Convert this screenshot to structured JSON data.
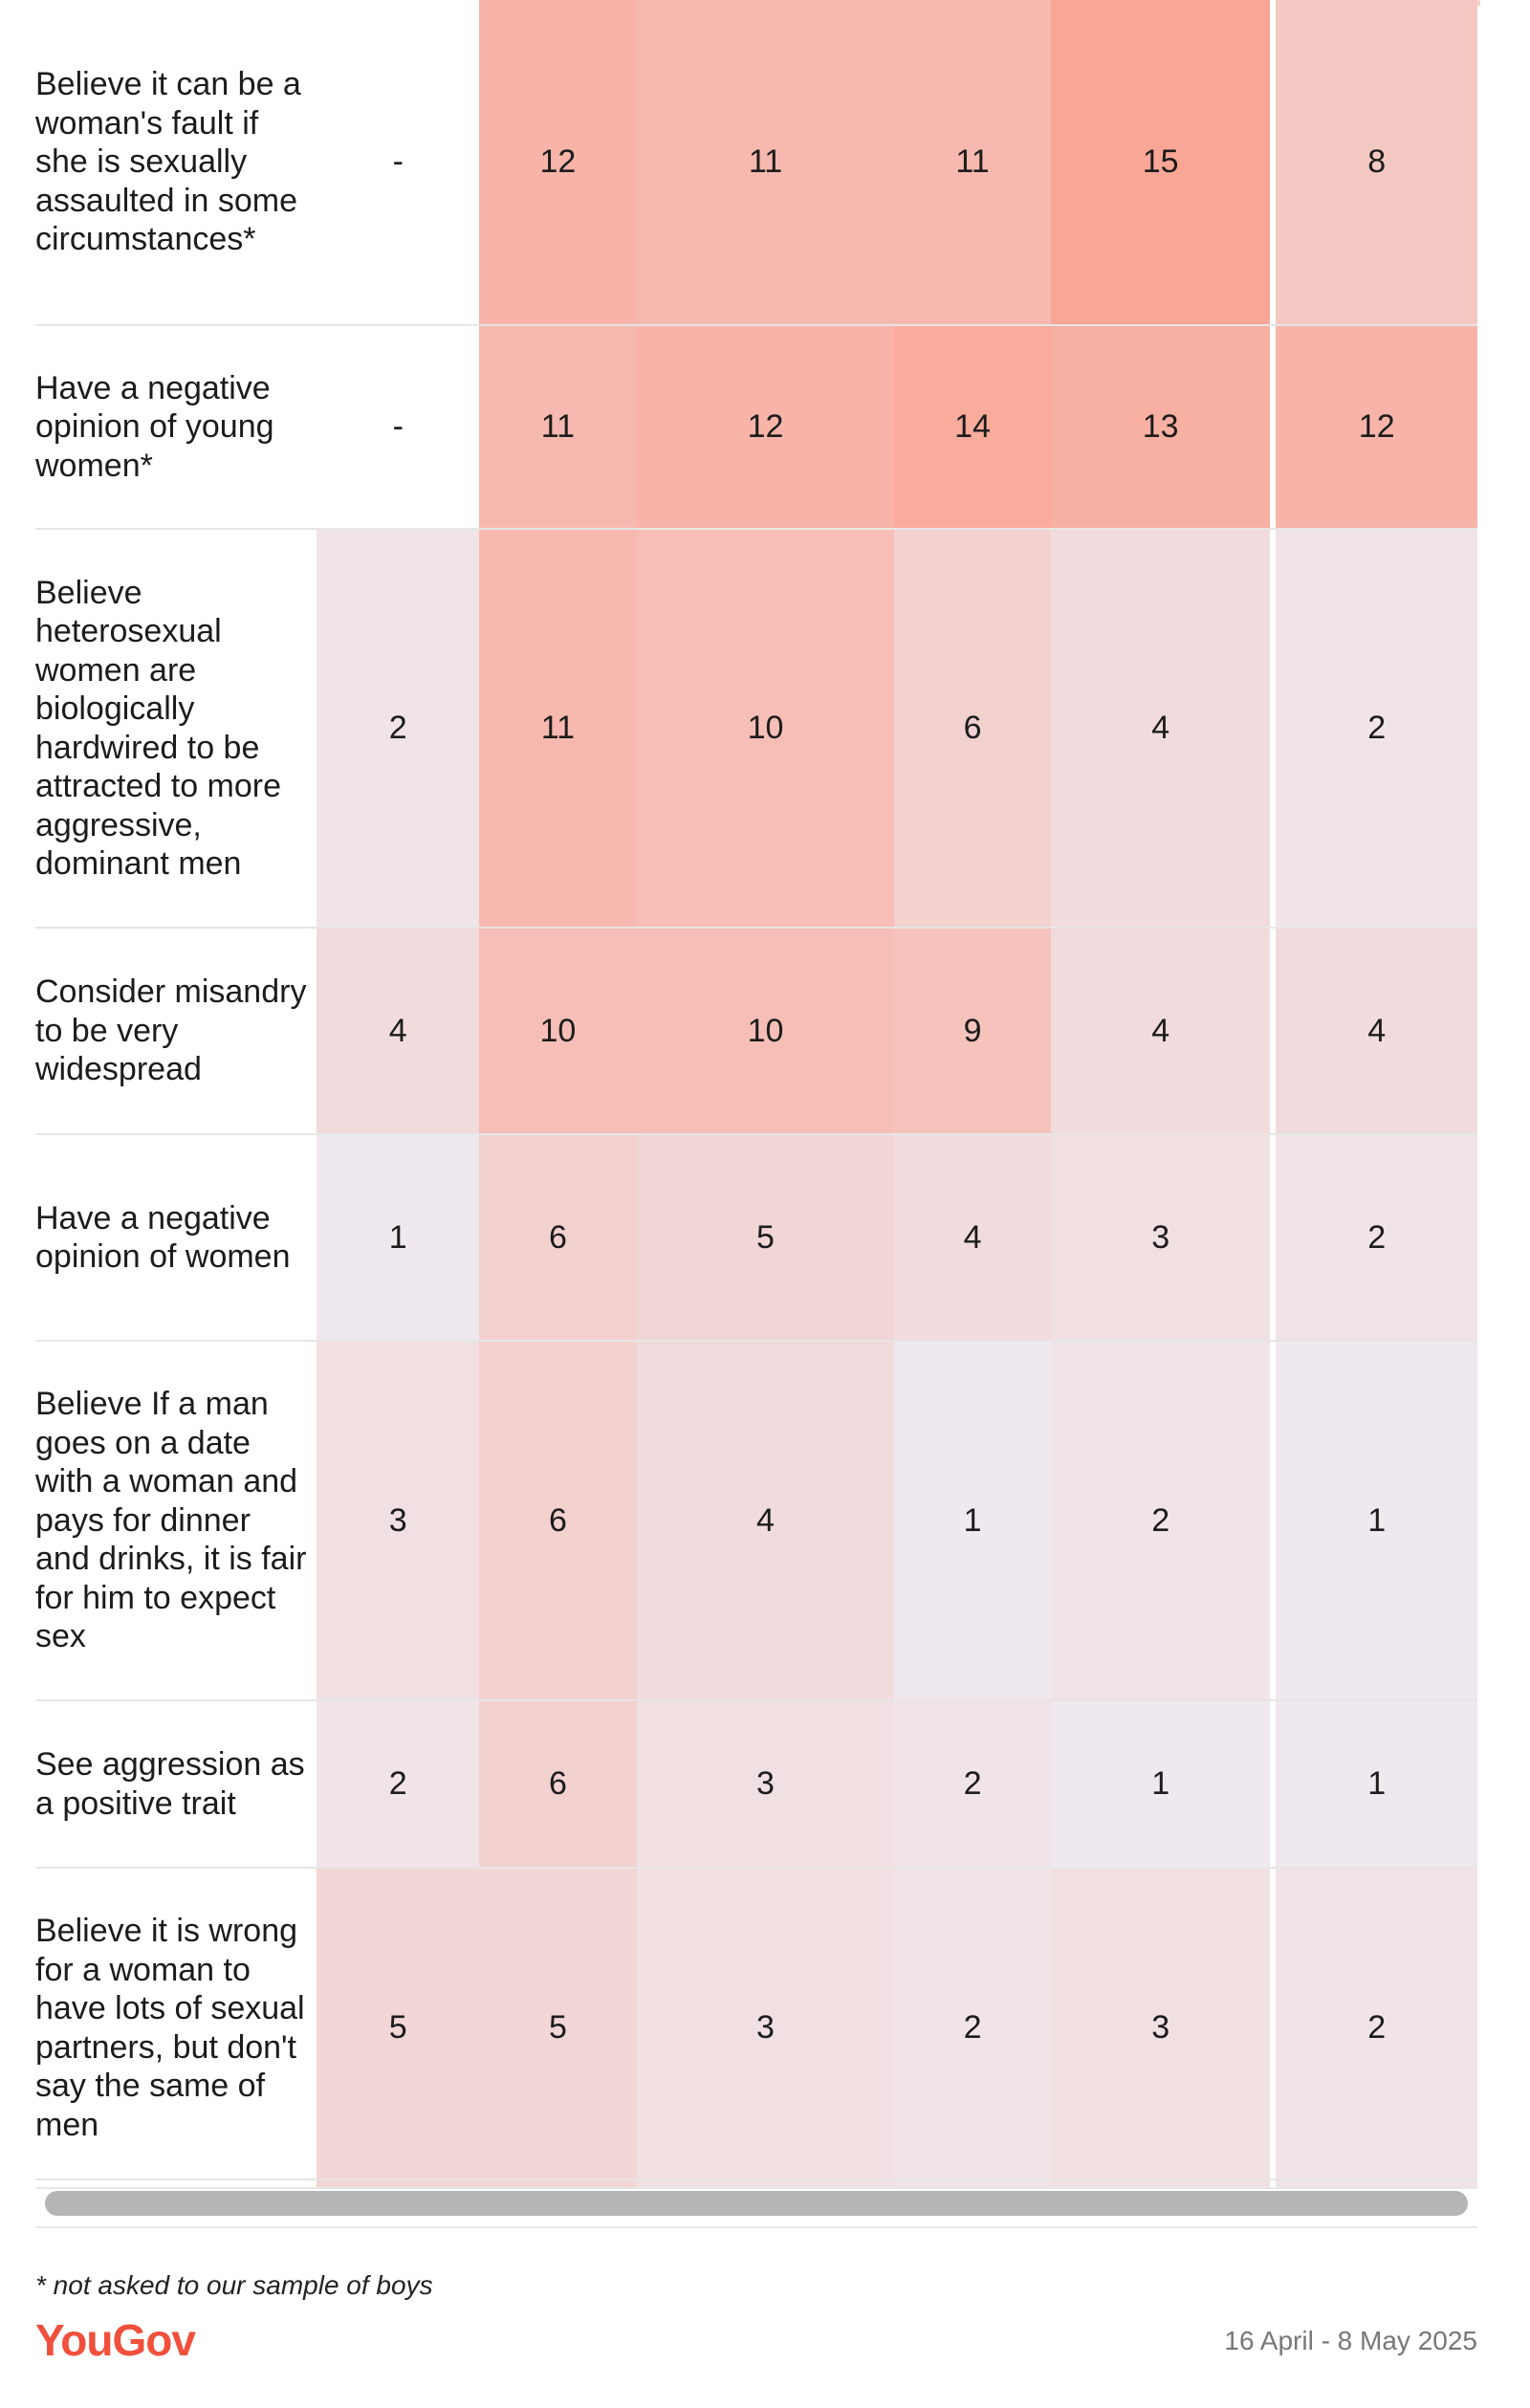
{
  "chart_data": {
    "type": "heatmap",
    "title": "",
    "rows": [
      {
        "label": "Believe it can be a woman's fault if she is sexually assaulted in some circumstances*",
        "values": [
          "-",
          "12",
          "11",
          "11",
          "15",
          "8"
        ]
      },
      {
        "label": "Have a negative opinion of young women*",
        "values": [
          "-",
          "11",
          "12",
          "14",
          "13",
          "12"
        ]
      },
      {
        "label": "Believe heterosexual women are biologically hardwired to be attracted to more aggressive, dominant men",
        "values": [
          "2",
          "11",
          "10",
          "6",
          "4",
          "2"
        ]
      },
      {
        "label": "Consider misandry to be very widespread",
        "values": [
          "4",
          "10",
          "10",
          "9",
          "4",
          "4"
        ]
      },
      {
        "label": "Have a negative opinion of women",
        "values": [
          "1",
          "6",
          "5",
          "4",
          "3",
          "2"
        ]
      },
      {
        "label": "Believe If a man goes on a date with a woman and pays for dinner and drinks, it is fair for him to expect sex",
        "values": [
          "3",
          "6",
          "4",
          "1",
          "2",
          "1"
        ]
      },
      {
        "label": "See aggression as a positive trait",
        "values": [
          "2",
          "6",
          "3",
          "2",
          "1",
          "1"
        ]
      },
      {
        "label": "Believe it is wrong for a woman to have lots of sexual partners, but don't say the same of men",
        "values": [
          "5",
          "5",
          "3",
          "2",
          "3",
          "2"
        ]
      }
    ],
    "color_scale": {
      "low": "#eeeef5",
      "high": "#faa696"
    }
  },
  "footer": {
    "footnote": "* not asked to our sample of boys",
    "logo": "YouGov",
    "date_range": "16 April - 8 May 2025"
  }
}
